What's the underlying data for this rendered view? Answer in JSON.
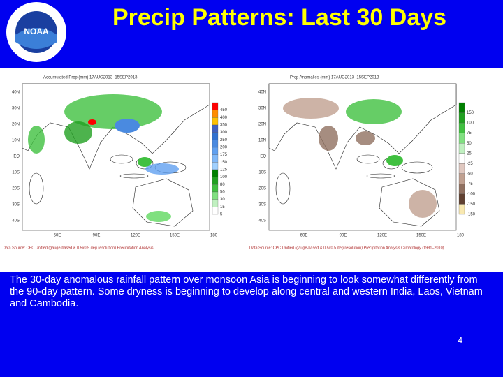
{
  "header": {
    "title": "Precip Patterns: Last 30 Days",
    "logo_text": "NOAA"
  },
  "maps": [
    {
      "title": "Accumulated Prcp (mm) 17AUG2013–15SEP2013",
      "legend": [
        {
          "label": "450",
          "color": "#ff0000"
        },
        {
          "label": "400",
          "color": "#ff8c00"
        },
        {
          "label": "350",
          "color": "#ffc000"
        },
        {
          "label": "300",
          "color": "#4060c0"
        },
        {
          "label": "250",
          "color": "#3070d0"
        },
        {
          "label": "200",
          "color": "#4a8ae0"
        },
        {
          "label": "175",
          "color": "#60a0f0"
        },
        {
          "label": "150",
          "color": "#80b8f8"
        },
        {
          "label": "125",
          "color": "#a0d0ff"
        },
        {
          "label": "100",
          "color": "#008000"
        },
        {
          "label": "80",
          "color": "#20a020"
        },
        {
          "label": "50",
          "color": "#40c040"
        },
        {
          "label": "30",
          "color": "#80e080"
        },
        {
          "label": "15",
          "color": "#c0f0c0"
        },
        {
          "label": "5",
          "color": "#ffffff"
        }
      ],
      "source": "Data Source: CPC Unified (gauge-based & 0.5x0.5 deg resolution) Precipitation Analysis"
    },
    {
      "title": "Prcp Anomalies (mm) 17AUG2013–15SEP2013",
      "legend": [
        {
          "label": "150",
          "color": "#008000"
        },
        {
          "label": "100",
          "color": "#20a020"
        },
        {
          "label": "75",
          "color": "#40c040"
        },
        {
          "label": "50",
          "color": "#80e080"
        },
        {
          "label": "25",
          "color": "#c0f0c0"
        },
        {
          "label": "-25",
          "color": "#ffffff"
        },
        {
          "label": "-50",
          "color": "#e0c8c0"
        },
        {
          "label": "-75",
          "color": "#c0a090"
        },
        {
          "label": "-100",
          "color": "#907060"
        },
        {
          "label": "-150",
          "color": "#604030"
        },
        {
          "label": "-150",
          "color": "#f8e8b0"
        }
      ],
      "source": "Data Source: CPC Unified (gauge-based & 0.5x0.5 deg resolution) Precipitation Analysis Climatology (1981–2010)"
    }
  ],
  "lat_labels": [
    "40N",
    "30N",
    "20N",
    "10N",
    "EQ",
    "10S",
    "20S",
    "30S",
    "40S"
  ],
  "lon_labels": [
    "60E",
    "90E",
    "120E",
    "150E",
    "180"
  ],
  "caption": "The 30-day anomalous rainfall pattern over monsoon Asia is beginning to look somewhat differently from the 90-day pattern. Some dryness is beginning to develop along central and western India, Laos, Vietnam and Cambodia.",
  "page_number": "4"
}
